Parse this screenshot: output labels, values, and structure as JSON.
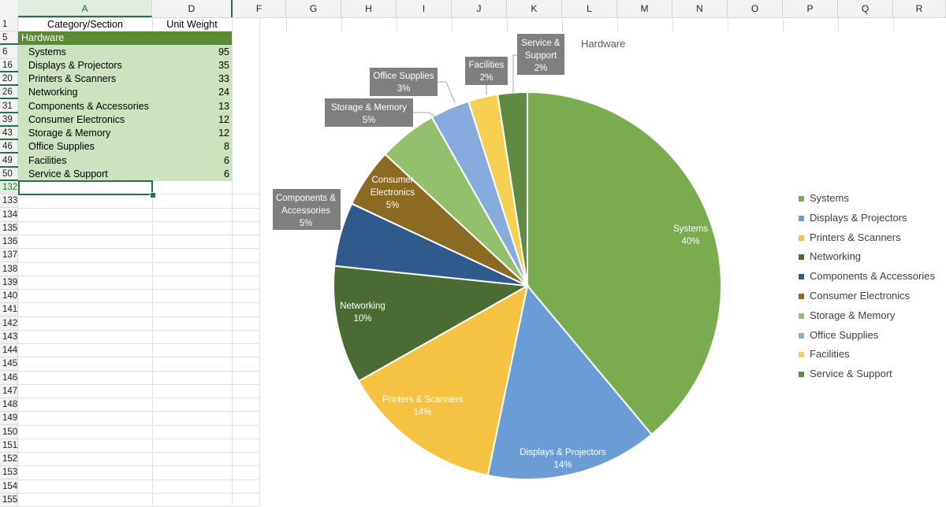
{
  "columns": [
    {
      "label": "A",
      "active": true
    },
    {
      "label": "D",
      "active": false
    },
    {
      "label": "F",
      "active": false
    },
    {
      "label": "G",
      "active": false
    },
    {
      "label": "H",
      "active": false
    },
    {
      "label": "I",
      "active": false
    },
    {
      "label": "J",
      "active": false
    },
    {
      "label": "K",
      "active": false
    },
    {
      "label": "L",
      "active": false
    },
    {
      "label": "M",
      "active": false
    },
    {
      "label": "N",
      "active": false
    },
    {
      "label": "O",
      "active": false
    },
    {
      "label": "P",
      "active": false
    },
    {
      "label": "Q",
      "active": false
    },
    {
      "label": "R",
      "active": false
    }
  ],
  "header_cells": {
    "category": "Category/Section",
    "weight": "Unit Weight"
  },
  "row_numbers": [
    "1",
    "5",
    "6",
    "16",
    "20",
    "26",
    "31",
    "39",
    "43",
    "46",
    "49",
    "50",
    "132",
    "133",
    "134",
    "135",
    "136",
    "137",
    "138",
    "139",
    "140",
    "141",
    "142",
    "143",
    "144",
    "145",
    "146",
    "147",
    "148",
    "149",
    "150",
    "151",
    "152",
    "153",
    "154",
    "155"
  ],
  "section_label": "Hardware",
  "table_rows": [
    {
      "name": "Systems",
      "weight": "95"
    },
    {
      "name": "Displays & Projectors",
      "weight": "35"
    },
    {
      "name": "Printers & Scanners",
      "weight": "33"
    },
    {
      "name": "Networking",
      "weight": "24"
    },
    {
      "name": "Components & Accessories",
      "weight": "13"
    },
    {
      "name": "Consumer Electronics",
      "weight": "12"
    },
    {
      "name": "Storage & Memory",
      "weight": "12"
    },
    {
      "name": "Office Supplies",
      "weight": "8"
    },
    {
      "name": "Facilities",
      "weight": "6"
    },
    {
      "name": "Service & Support",
      "weight": "6"
    }
  ],
  "chart_data": {
    "type": "pie",
    "title": "Hardware",
    "legend_position": "right",
    "categories": [
      "Systems",
      "Displays & Projectors",
      "Printers & Scanners",
      "Networking",
      "Components & Accessories",
      "Consumer Electronics",
      "Storage & Memory",
      "Office Supplies",
      "Facilities",
      "Service & Support"
    ],
    "values": [
      95,
      35,
      33,
      24,
      13,
      12,
      12,
      8,
      6,
      6
    ],
    "percent_labels": [
      "40%",
      "14%",
      "14%",
      "10%",
      "5%",
      "5%",
      "5%",
      "3%",
      "2%",
      "2%"
    ],
    "colors": [
      "#7aab4f",
      "#6a9dd6",
      "#f5c242",
      "#4a6b31",
      "#2f5a8c",
      "#8b6a22",
      "#94c06e",
      "#86acde",
      "#f7cf52",
      "#5f8a42"
    ],
    "data_labels": [
      {
        "lines": [
          "Systems",
          "40%"
        ],
        "callout": false
      },
      {
        "lines": [
          "Displays & Projectors",
          "14%"
        ],
        "callout": false
      },
      {
        "lines": [
          "Printers & Scanners",
          "14%"
        ],
        "callout": false
      },
      {
        "lines": [
          "Networking",
          "10%"
        ],
        "callout": false
      },
      {
        "lines": [
          "Components &",
          "Accessories",
          "5%"
        ],
        "callout": true
      },
      {
        "lines": [
          "Consumer",
          "Electronics",
          "5%"
        ],
        "callout": false
      },
      {
        "lines": [
          "Storage & Memory",
          "5%"
        ],
        "callout": true
      },
      {
        "lines": [
          "Office Supplies",
          "3%"
        ],
        "callout": true
      },
      {
        "lines": [
          "Facilities",
          "2%"
        ],
        "callout": true
      },
      {
        "lines": [
          "Service &",
          "Support",
          "2%"
        ],
        "callout": true
      }
    ]
  }
}
